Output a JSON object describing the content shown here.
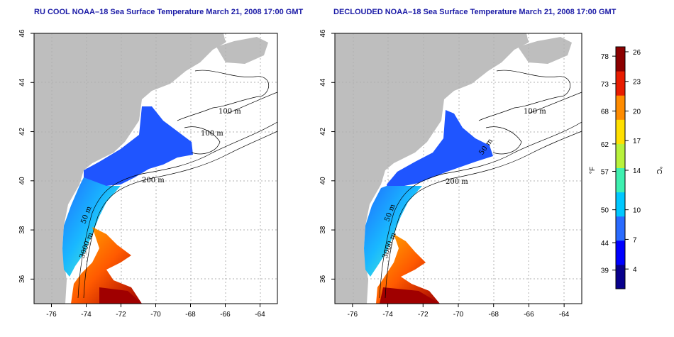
{
  "panels": [
    {
      "title": "RU COOL NOAA–18 Sea Surface Temperature March 21, 2008 17:00 GMT",
      "contour_labels": [
        "100 m",
        "100 m",
        "200 m",
        "50 m",
        "3000 m"
      ]
    },
    {
      "title": "DECLOUDED NOAA–18 Sea Surface Temperature March 21, 2008 17:00 GMT",
      "contour_labels": [
        "100 m",
        "50 m",
        "200 m",
        "50 m",
        "3000 m"
      ]
    }
  ],
  "axes": {
    "x_ticks": [
      "-76",
      "-74",
      "-72",
      "-70",
      "-68",
      "-66",
      "-64"
    ],
    "y_ticks": [
      "36",
      "38",
      "40",
      "42",
      "44",
      "46"
    ],
    "x_range": [
      -77,
      -63
    ],
    "y_range": [
      35,
      46
    ]
  },
  "colorbar": {
    "fahrenheit_unit": "°F",
    "celsius_unit": "°C",
    "fahrenheit_ticks": [
      "78",
      "73",
      "68",
      "62",
      "57",
      "50",
      "44",
      "39"
    ],
    "celsius_ticks": [
      "26",
      "23",
      "20",
      "17",
      "14",
      "10",
      "7",
      "4"
    ],
    "colors": [
      "#08008c",
      "#0000ff",
      "#2a6bff",
      "#00c8ff",
      "#3ef0b0",
      "#b8f23c",
      "#ffe000",
      "#ff8c00",
      "#e81c00",
      "#8c0000"
    ]
  },
  "colors": {
    "land": "#bebebe",
    "title": "#1a1aa6",
    "grid": "#b0b0b0"
  }
}
